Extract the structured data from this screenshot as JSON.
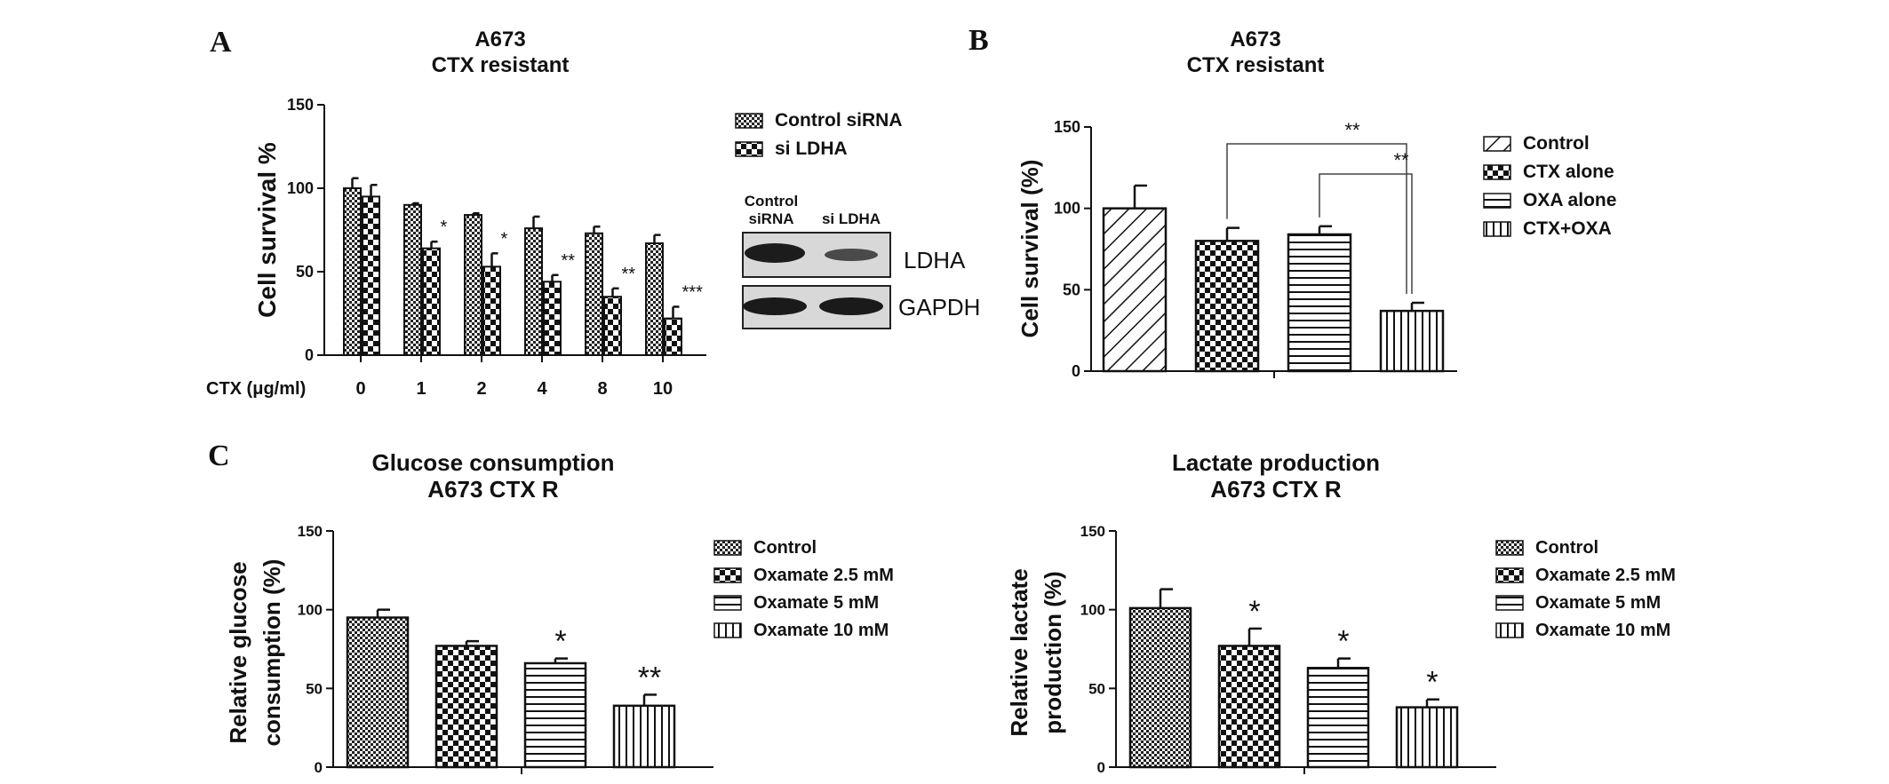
{
  "figure": {
    "panel_labels": [
      "A",
      "B",
      "C"
    ],
    "blot": {
      "lane_labels": [
        "Control\nsiRNA",
        "si LDHA"
      ],
      "band_labels": [
        "LDHA",
        "GAPDH"
      ]
    }
  },
  "chart_data": [
    {
      "panel": "A",
      "type": "bar",
      "title": "A673\nCTX resistant",
      "ylabel": "Cell survival %",
      "xlabel_prefix": "CTX (μg/ml)",
      "categories": [
        "0",
        "1",
        "2",
        "4",
        "8",
        "10"
      ],
      "ylim": [
        0,
        150
      ],
      "yticks": [
        0,
        50,
        100,
        150
      ],
      "legend_placement": "right",
      "series": [
        {
          "name": "Control siRNA",
          "pattern": "fine-check",
          "values": [
            100,
            90,
            84,
            76,
            73,
            67
          ],
          "errors": [
            6,
            1,
            1,
            7,
            4,
            5
          ]
        },
        {
          "name": "si LDHA",
          "pattern": "check",
          "values": [
            95,
            64,
            53,
            44,
            35,
            22
          ],
          "errors": [
            7,
            4,
            8,
            4,
            5,
            7
          ]
        }
      ],
      "annotations": [
        "",
        "*",
        "*",
        "**",
        "**",
        "***"
      ]
    },
    {
      "panel": "B",
      "type": "bar",
      "title": "A673\nCTX resistant",
      "ylabel": "Cell survival (%)",
      "categories": [
        "Control",
        "CTX alone",
        "OXA alone",
        "CTX+OXA"
      ],
      "ylim": [
        0,
        150
      ],
      "yticks": [
        0,
        50,
        100,
        150
      ],
      "legend_placement": "right",
      "series": [
        {
          "name": "Control",
          "pattern": "diagonal",
          "value": 100,
          "error": 14
        },
        {
          "name": "CTX alone",
          "pattern": "check",
          "value": 80,
          "error": 8
        },
        {
          "name": "OXA alone",
          "pattern": "horizontal",
          "value": 84,
          "error": 5
        },
        {
          "name": "CTX+OXA",
          "pattern": "vertical",
          "value": 37,
          "error": 5
        }
      ],
      "comparisons": [
        {
          "from": 1,
          "to": 3,
          "label": "**"
        },
        {
          "from": 2,
          "to": 3,
          "label": "**"
        }
      ]
    },
    {
      "panel": "C-left",
      "type": "bar",
      "title": "Glucose consumption\nA673 CTX R",
      "ylabel": "Relative glucose\nconsumption (%)",
      "categories": [
        "Control",
        "Oxamate 2.5 mM",
        "Oxamate 5 mM",
        "Oxamate 10 mM"
      ],
      "ylim": [
        0,
        150
      ],
      "yticks": [
        0,
        50,
        100,
        150
      ],
      "legend_placement": "right",
      "series": [
        {
          "name": "Control",
          "pattern": "fine-check",
          "value": 95,
          "error": 5
        },
        {
          "name": "Oxamate 2.5 mM",
          "pattern": "check",
          "value": 77,
          "error": 3
        },
        {
          "name": "Oxamate 5 mM",
          "pattern": "horizontal",
          "value": 66,
          "error": 3
        },
        {
          "name": "Oxamate 10 mM",
          "pattern": "vertical",
          "value": 39,
          "error": 7
        }
      ],
      "annotations": [
        "",
        "",
        "*",
        "**"
      ]
    },
    {
      "panel": "C-right",
      "type": "bar",
      "title": "Lactate production\nA673 CTX R",
      "ylabel": "Relative lactate\nproduction (%)",
      "categories": [
        "Control",
        "Oxamate 2.5 mM",
        "Oxamate 5 mM",
        "Oxamate 10 mM"
      ],
      "ylim": [
        0,
        150
      ],
      "yticks": [
        0,
        50,
        100,
        150
      ],
      "legend_placement": "right",
      "series": [
        {
          "name": "Control",
          "pattern": "fine-check",
          "value": 101,
          "error": 12
        },
        {
          "name": "Oxamate 2.5 mM",
          "pattern": "check",
          "value": 77,
          "error": 11
        },
        {
          "name": "Oxamate 5 mM",
          "pattern": "horizontal",
          "value": 63,
          "error": 6
        },
        {
          "name": "Oxamate 10 mM",
          "pattern": "vertical",
          "value": 38,
          "error": 5
        }
      ],
      "annotations": [
        "",
        "*",
        "*",
        "*"
      ]
    }
  ]
}
